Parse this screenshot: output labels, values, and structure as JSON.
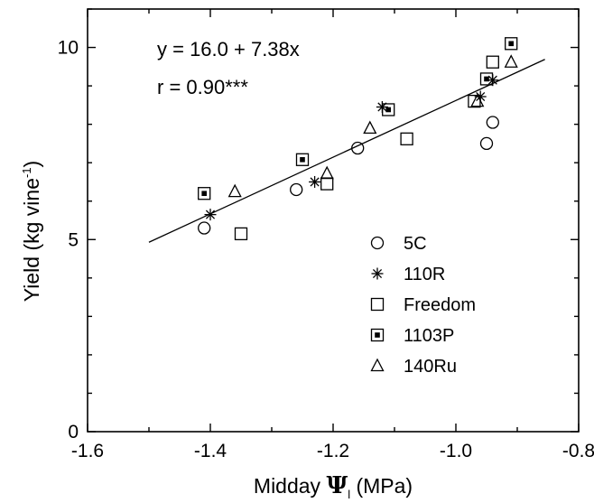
{
  "chart_data": {
    "type": "scatter",
    "xlabel": {
      "prefix": "Midday ",
      "symbol": "Ψ",
      "subscript": "l",
      "suffix": " (MPa)"
    },
    "ylabel": {
      "main": "Yield (kg vine",
      "superscript": "-1",
      "close": ")"
    },
    "xlim": [
      -1.6,
      -0.8
    ],
    "ylim": [
      0,
      11
    ],
    "x_ticks": [
      -1.6,
      -1.4,
      -1.2,
      -1.0,
      -0.8
    ],
    "x_tick_labels": [
      "-1.6",
      "-1.4",
      "-1.2",
      "-1.0",
      "-0.8"
    ],
    "y_ticks": [
      0,
      5,
      10
    ],
    "y_tick_labels": [
      "0",
      "5",
      "10"
    ],
    "grid": false,
    "legend_placement": "bottom-right",
    "annotations": [
      "y = 16.0 + 7.38x",
      "r = 0.90***"
    ],
    "regression": {
      "intercept": 16.0,
      "slope": 7.38,
      "x_range": [
        -1.5,
        -0.855
      ]
    },
    "series": [
      {
        "name": "5C",
        "marker": "circle",
        "points": [
          [
            -1.41,
            5.3
          ],
          [
            -1.26,
            6.3
          ],
          [
            -1.16,
            7.38
          ],
          [
            -0.95,
            7.5
          ],
          [
            -0.94,
            8.05
          ]
        ]
      },
      {
        "name": "110R",
        "marker": "asterisk",
        "points": [
          [
            -1.4,
            5.65
          ],
          [
            -1.23,
            6.5
          ],
          [
            -1.12,
            8.45
          ],
          [
            -0.96,
            8.72
          ],
          [
            -0.94,
            9.15
          ]
        ]
      },
      {
        "name": "Freedom",
        "marker": "square",
        "points": [
          [
            -1.35,
            5.15
          ],
          [
            -1.21,
            6.45
          ],
          [
            -1.08,
            7.62
          ],
          [
            -0.97,
            8.6
          ],
          [
            -0.94,
            9.62
          ]
        ]
      },
      {
        "name": "1103P",
        "marker": "square-dot",
        "points": [
          [
            -1.41,
            6.2
          ],
          [
            -1.25,
            7.08
          ],
          [
            -1.11,
            8.38
          ],
          [
            -0.95,
            9.18
          ],
          [
            -0.91,
            10.1
          ]
        ]
      },
      {
        "name": "140Ru",
        "marker": "triangle",
        "points": [
          [
            -1.36,
            6.25
          ],
          [
            -1.21,
            6.72
          ],
          [
            -1.14,
            7.9
          ],
          [
            -0.965,
            8.6
          ],
          [
            -0.91,
            9.62
          ]
        ]
      }
    ]
  }
}
